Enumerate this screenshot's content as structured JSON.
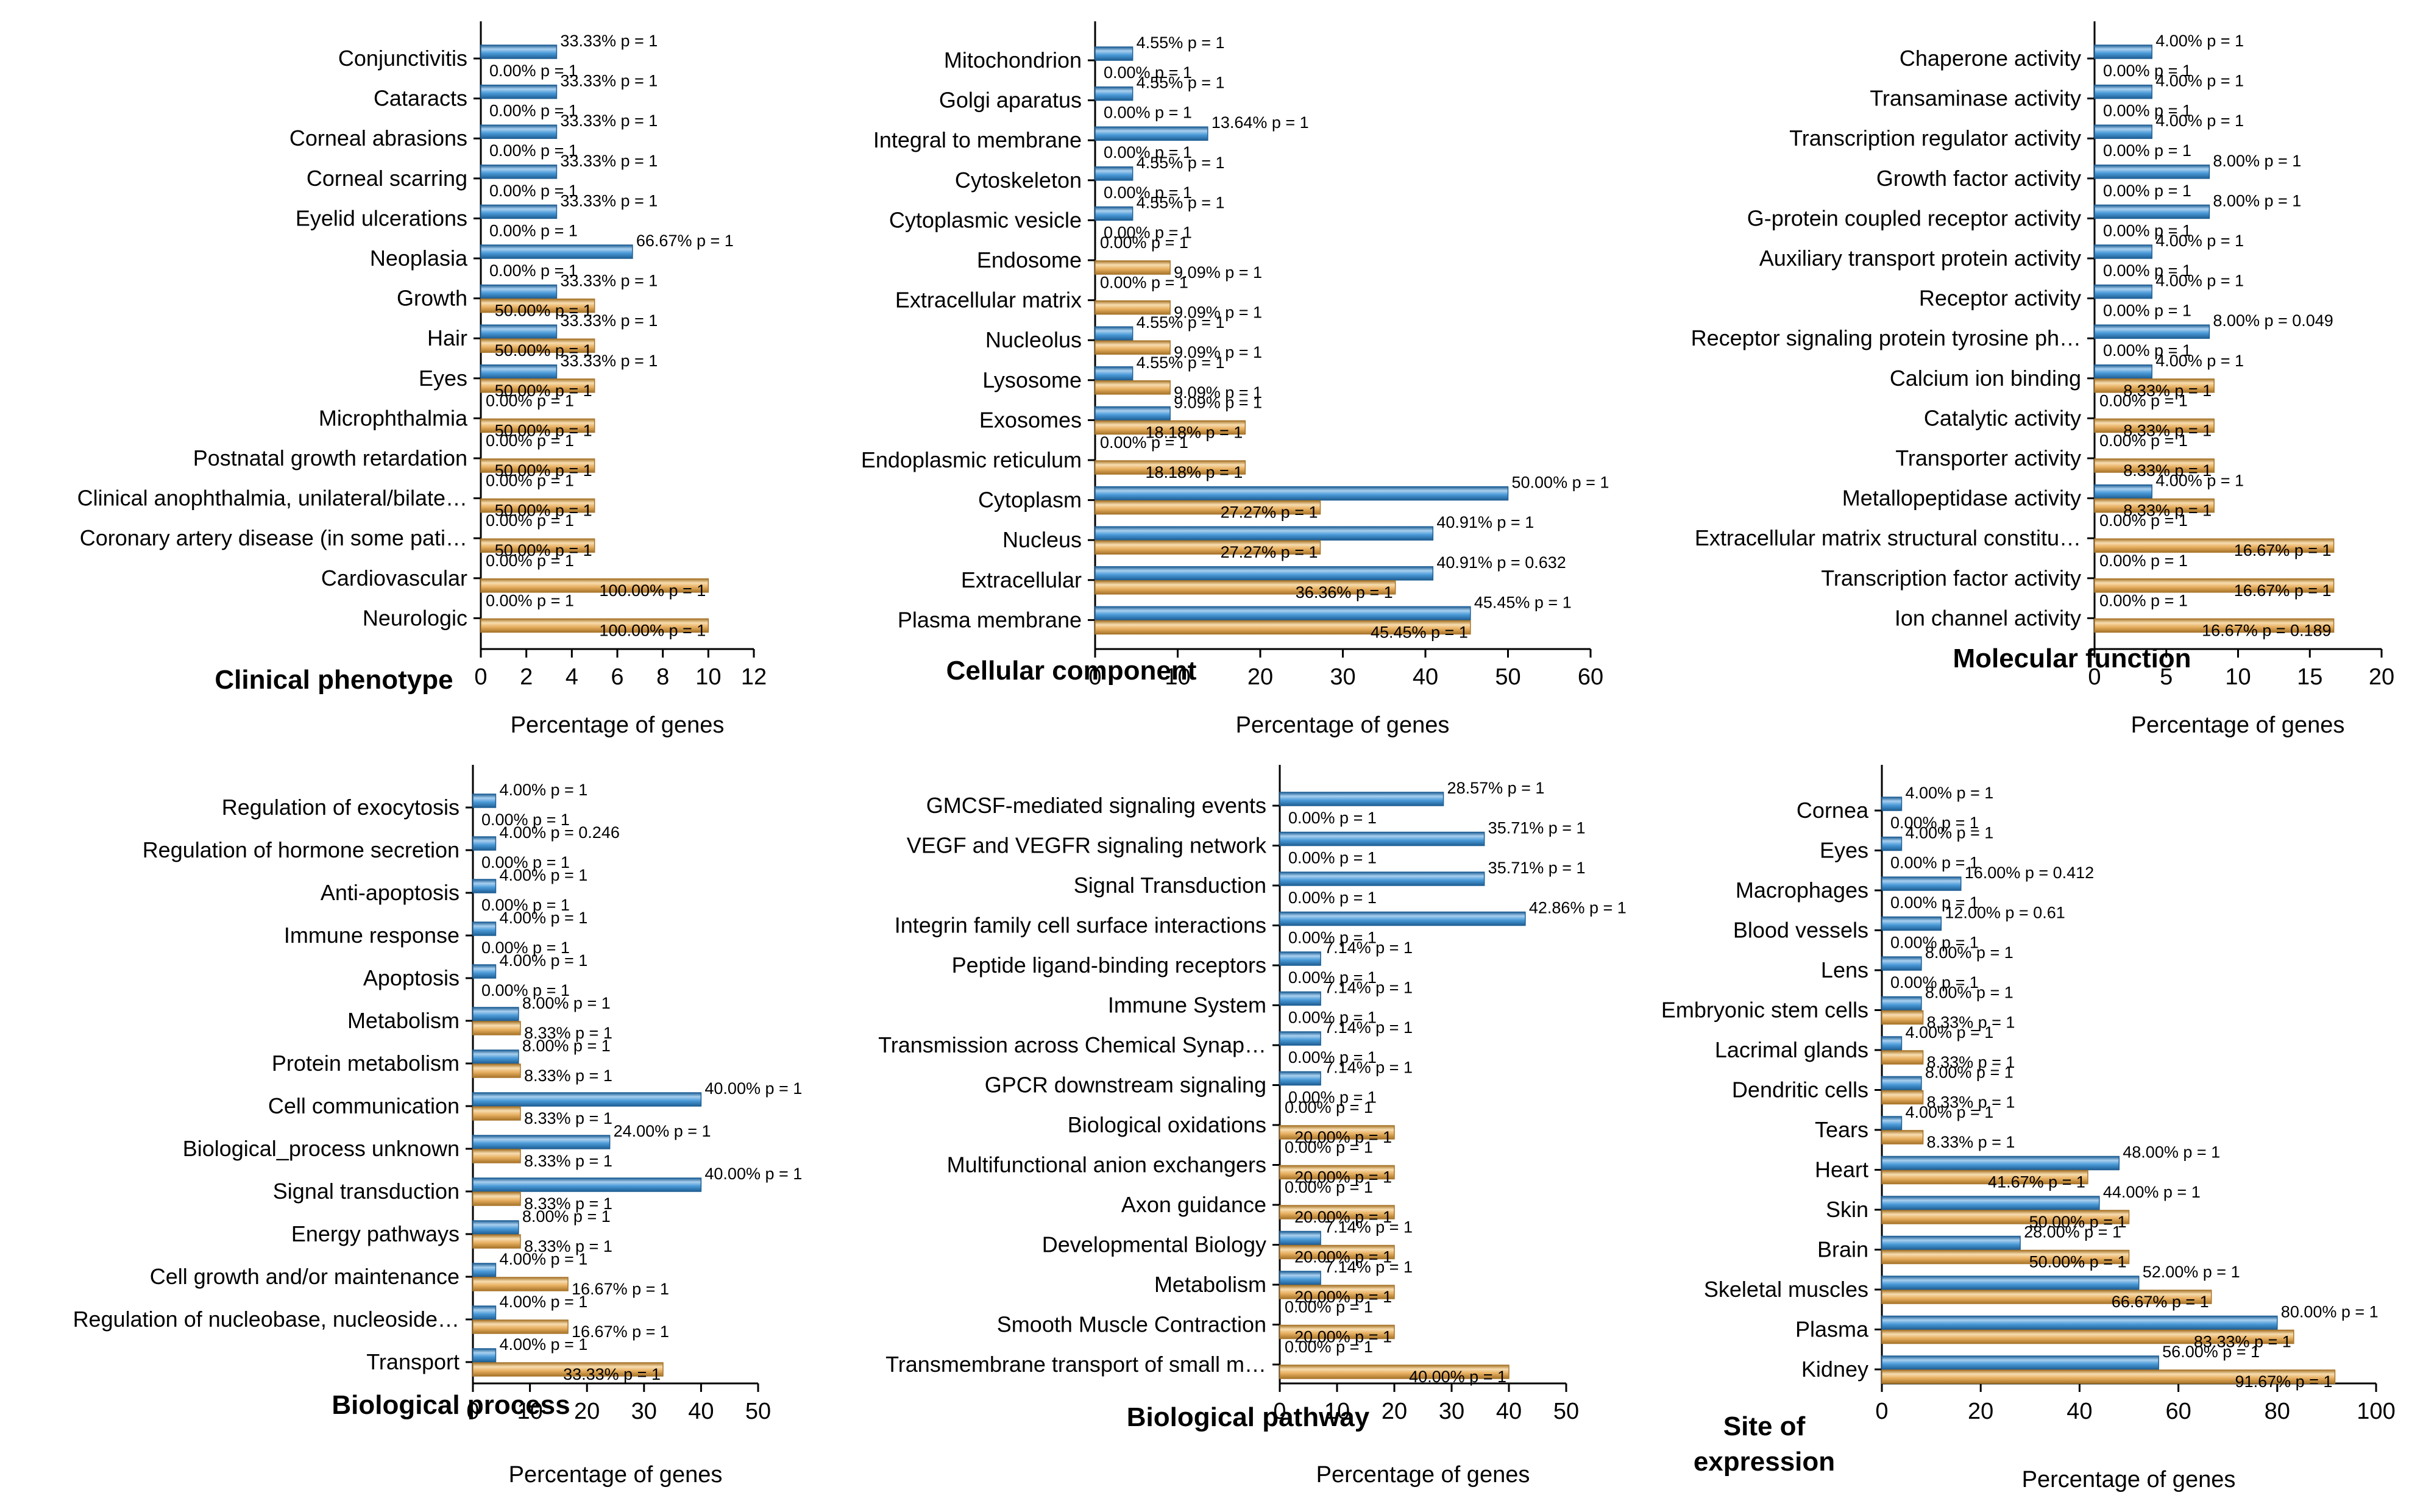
{
  "figure_title": "",
  "colors": {
    "blue": "#4a9ad8",
    "blue_light": "#a9d0ef",
    "blue_dark": "#1f5f95",
    "orange": "#e8b062",
    "orange_light": "#f7ddb0",
    "orange_dark": "#a8752a",
    "axis": "#000000",
    "text": "#000000"
  },
  "chart_data": [
    {
      "type": "bar",
      "orientation": "horizontal",
      "title": "Clinical phenotype",
      "xlabel": "Percentage of genes",
      "xlim": [
        0,
        12
      ],
      "xticks": [
        0,
        2,
        4,
        6,
        8,
        10,
        12
      ],
      "categories": [
        "Conjunctivitis",
        "Cataracts",
        "Corneal abrasions",
        "Corneal scarring",
        "Eyelid ulcerations",
        "Neoplasia",
        "Growth",
        "Hair",
        "Eyes",
        "Microphthalmia",
        "Postnatal growth retardation",
        "Clinical anophthalmia, unilateral/bilate…",
        "Coronary artery disease (in some pati…",
        "Cardiovascular",
        "Neurologic"
      ],
      "series": [
        {
          "name": "blue",
          "values": [
            3.333,
            3.333,
            3.333,
            3.333,
            3.333,
            6.667,
            3.333,
            3.333,
            3.333,
            0,
            0,
            0,
            0,
            0,
            0
          ],
          "labels": [
            "33.33%  p = 1",
            "33.33%  p = 1",
            "33.33%  p = 1",
            "33.33%  p = 1",
            "33.33%  p = 1",
            "66.67%  p = 1",
            "33.33%  p = 1",
            "33.33%  p = 1",
            "33.33%  p = 1",
            "0.00%  p = 1",
            "0.00%  p = 1",
            "0.00%  p = 1",
            "0.00%  p = 1",
            "0.00%  p = 1",
            "0.00%  p = 1"
          ]
        },
        {
          "name": "orange",
          "values": [
            0,
            0,
            0,
            0,
            0,
            0,
            5,
            5,
            5,
            5,
            5,
            5,
            5,
            10,
            10
          ],
          "labels": [
            "0.00%  p = 1",
            "0.00%  p = 1",
            "0.00%  p = 1",
            "0.00%  p = 1",
            "0.00%  p = 1",
            "0.00%  p = 1",
            "50.00%  p = 1",
            "50.00%  p = 1",
            "50.00%  p = 1",
            "50.00%  p = 1",
            "50.00%  p = 1",
            "50.00%  p = 1",
            "50.00%  p = 1",
            "100.00%  p = 1",
            "100.00%  p = 1"
          ]
        }
      ]
    },
    {
      "type": "bar",
      "orientation": "horizontal",
      "title": "Cellular component",
      "xlabel": "Percentage of genes",
      "xlim": [
        0,
        60
      ],
      "xticks": [
        0,
        10,
        20,
        30,
        40,
        50,
        60
      ],
      "categories": [
        "Mitochondrion",
        "Golgi aparatus",
        "Integral to membrane",
        "Cytoskeleton",
        "Cytoplasmic vesicle",
        "Endosome",
        "Extracellular matrix",
        "Nucleolus",
        "Lysosome",
        "Exosomes",
        "Endoplasmic reticulum",
        "Cytoplasm",
        "Nucleus",
        "Extracellular",
        "Plasma membrane"
      ],
      "series": [
        {
          "name": "blue",
          "values": [
            4.55,
            4.55,
            13.64,
            4.55,
            4.55,
            0,
            0,
            4.55,
            4.55,
            9.09,
            0,
            50,
            40.91,
            40.91,
            45.45
          ],
          "labels": [
            "4.55%  p = 1",
            "4.55%  p = 1",
            "13.64%  p = 1",
            "4.55%  p = 1",
            "4.55%  p = 1",
            "0.00%  p = 1",
            "0.00%  p = 1",
            "4.55%  p = 1",
            "4.55%  p = 1",
            "9.09%  p = 1",
            "0.00%  p = 1",
            "50.00%  p = 1",
            "40.91%  p = 1",
            "40.91%  p = 0.632",
            "45.45%  p = 1"
          ]
        },
        {
          "name": "orange",
          "values": [
            0,
            0,
            0,
            0,
            0,
            9.09,
            9.09,
            9.09,
            9.09,
            18.18,
            18.18,
            27.27,
            27.27,
            36.36,
            45.45
          ],
          "labels": [
            "0.00%  p = 1",
            "0.00%  p = 1",
            "0.00%  p = 1",
            "0.00%  p = 1",
            "0.00%  p = 1",
            "9.09%  p = 1",
            "9.09%  p = 1",
            "9.09%  p = 1",
            "9.09%  p = 1",
            "18.18%  p = 1",
            "18.18%  p = 1",
            "27.27%  p = 1",
            "27.27%  p = 1",
            "36.36%  p = 1",
            "45.45%  p = 1"
          ]
        }
      ]
    },
    {
      "type": "bar",
      "orientation": "horizontal",
      "title": "Molecular function",
      "xlabel": "Percentage of genes",
      "xlim": [
        0,
        20
      ],
      "xticks": [
        0,
        5,
        10,
        15,
        20
      ],
      "categories": [
        "Chaperone activity",
        "Transaminase activity",
        "Transcription regulator activity",
        "Growth factor activity",
        "G-protein coupled receptor activity",
        "Auxiliary transport protein activity",
        "Receptor activity",
        "Receptor signaling protein tyrosine ph…",
        "Calcium ion binding",
        "Catalytic activity",
        "Transporter activity",
        "Metallopeptidase activity",
        "Extracellular matrix structural constitu…",
        "Transcription factor activity",
        "Ion channel activity"
      ],
      "series": [
        {
          "name": "blue",
          "values": [
            4,
            4,
            4,
            8,
            8,
            4,
            4,
            8,
            4,
            0,
            0,
            4,
            0,
            0,
            0
          ],
          "labels": [
            "4.00%  p = 1",
            "4.00%  p = 1",
            "4.00%  p = 1",
            "8.00%  p = 1",
            "8.00%  p = 1",
            "4.00%  p = 1",
            "4.00%  p = 1",
            "8.00%  p = 0.049",
            "4.00%  p = 1",
            "0.00%  p = 1",
            "0.00%  p = 1",
            "4.00%  p = 1",
            "0.00%  p = 1",
            "0.00%  p = 1",
            "0.00%  p = 1"
          ]
        },
        {
          "name": "orange",
          "values": [
            0,
            0,
            0,
            0,
            0,
            0,
            0,
            0,
            8.33,
            8.33,
            8.33,
            8.33,
            16.67,
            16.67,
            16.67
          ],
          "labels": [
            "0.00%  p = 1",
            "0.00%  p = 1",
            "0.00%  p = 1",
            "0.00%  p = 1",
            "0.00%  p = 1",
            "0.00%  p = 1",
            "0.00%  p = 1",
            "0.00%  p = 1",
            "8.33%  p = 1",
            "8.33%  p = 1",
            "8.33%  p = 1",
            "8.33%  p = 1",
            "16.67%  p = 1",
            "16.67%  p = 1",
            "16.67%  p = 0.189"
          ]
        }
      ]
    },
    {
      "type": "bar",
      "orientation": "horizontal",
      "title": "Biological process",
      "xlabel": "Percentage of genes",
      "xlim": [
        0,
        50
      ],
      "xticks": [
        0,
        10,
        20,
        30,
        40,
        50
      ],
      "categories": [
        "Regulation of exocytosis",
        "Regulation of hormone secretion",
        "Anti-apoptosis",
        "Immune response",
        "Apoptosis",
        "Metabolism",
        "Protein metabolism",
        "Cell communication",
        "Biological_process unknown",
        "Signal transduction",
        "Energy pathways",
        "Cell growth and/or maintenance",
        "Regulation of nucleobase, nucleoside…",
        "Transport"
      ],
      "series": [
        {
          "name": "blue",
          "values": [
            4,
            4,
            4,
            4,
            4,
            8,
            8,
            40,
            24,
            40,
            8,
            4,
            4,
            4
          ],
          "labels": [
            "4.00%  p = 1",
            "4.00%  p = 0.246",
            "4.00%  p = 1",
            "4.00%  p = 1",
            "4.00%  p = 1",
            "8.00%  p = 1",
            "8.00%  p = 1",
            "40.00%  p = 1",
            "24.00%  p = 1",
            "40.00%  p = 1",
            "8.00%  p = 1",
            "4.00%  p = 1",
            "4.00%  p = 1",
            "4.00%  p = 1"
          ]
        },
        {
          "name": "orange",
          "values": [
            0,
            0,
            0,
            0,
            0,
            8.33,
            8.33,
            8.33,
            8.33,
            8.33,
            8.33,
            16.67,
            16.67,
            33.33
          ],
          "labels": [
            "0.00%  p = 1",
            "0.00%  p = 1",
            "0.00%  p = 1",
            "0.00%  p = 1",
            "0.00%  p = 1",
            "8.33%  p = 1",
            "8.33%  p = 1",
            "8.33%  p = 1",
            "8.33%  p = 1",
            "8.33%  p = 1",
            "8.33%  p = 1",
            "16.67%  p = 1",
            "16.67%  p = 1",
            "33.33%  p = 1"
          ]
        }
      ]
    },
    {
      "type": "bar",
      "orientation": "horizontal",
      "title": "Biological pathway",
      "xlabel": "Percentage of genes",
      "xlim": [
        0,
        50
      ],
      "xticks": [
        0,
        10,
        20,
        30,
        40,
        50
      ],
      "categories": [
        "GMCSF-mediated signaling events",
        "VEGF and VEGFR signaling network",
        "Signal Transduction",
        "Integrin family cell surface interactions",
        "Peptide ligand-binding receptors",
        "Immune System",
        "Transmission across Chemical Synap…",
        "GPCR downstream signaling",
        "Biological oxidations",
        "Multifunctional anion exchangers",
        "Axon guidance",
        "Developmental Biology",
        "Metabolism",
        "Smooth Muscle Contraction",
        "Transmembrane transport of small m…"
      ],
      "series": [
        {
          "name": "blue",
          "values": [
            28.57,
            35.71,
            35.71,
            42.86,
            7.14,
            7.14,
            7.14,
            7.14,
            0,
            0,
            0,
            7.14,
            7.14,
            0,
            0
          ],
          "labels": [
            "28.57%  p = 1",
            "35.71%  p = 1",
            "35.71%  p = 1",
            "42.86%  p = 1",
            "7.14%  p = 1",
            "7.14%  p = 1",
            "7.14%  p = 1",
            "7.14%  p = 1",
            "0.00%  p = 1",
            "0.00%  p = 1",
            "0.00%  p = 1",
            "7.14%  p = 1",
            "7.14%  p = 1",
            "0.00%  p = 1",
            "0.00%  p = 1"
          ]
        },
        {
          "name": "orange",
          "values": [
            0,
            0,
            0,
            0,
            0,
            0,
            0,
            0,
            20,
            20,
            20,
            20,
            20,
            20,
            40
          ],
          "labels": [
            "0.00%  p = 1",
            "0.00%  p = 1",
            "0.00%  p = 1",
            "0.00%  p = 1",
            "0.00%  p = 1",
            "0.00%  p = 1",
            "0.00%  p = 1",
            "0.00%  p = 1",
            "20.00%  p = 1",
            "20.00%  p = 1",
            "20.00%  p = 1",
            "20.00%  p = 1",
            "20.00%  p = 1",
            "20.00%  p = 1",
            "40.00%  p = 1"
          ]
        }
      ]
    },
    {
      "type": "bar",
      "orientation": "horizontal",
      "title": "Site of expression",
      "xlabel": "Percentage of genes",
      "xlim": [
        0,
        100
      ],
      "xticks": [
        0,
        20,
        40,
        60,
        80,
        100
      ],
      "categories": [
        "Cornea",
        "Eyes",
        "Macrophages",
        "Blood vessels",
        "Lens",
        "Embryonic stem cells",
        "Lacrimal glands",
        "Dendritic cells",
        "Tears",
        "Heart",
        "Skin",
        "Brain",
        "Skeletal muscles",
        "Plasma",
        "Kidney"
      ],
      "series": [
        {
          "name": "blue",
          "values": [
            4,
            4,
            16,
            12,
            8,
            8,
            4,
            8,
            4,
            48,
            44,
            28,
            52,
            80,
            56
          ],
          "labels": [
            "4.00%  p = 1",
            "4.00%  p = 1",
            "16.00%  p = 0.412",
            "12.00%  p = 0.61",
            "8.00%  p = 1",
            "8.00%  p = 1",
            "4.00%  p = 1",
            "8.00%  p = 1",
            "4.00%  p = 1",
            "48.00%  p = 1",
            "44.00%  p = 1",
            "28.00%  p = 1",
            "52.00%  p = 1",
            "80.00%  p = 1",
            "56.00%  p = 1"
          ]
        },
        {
          "name": "orange",
          "values": [
            0,
            0,
            0,
            0,
            0,
            8.33,
            8.33,
            8.33,
            8.33,
            41.67,
            50,
            50,
            66.67,
            83.33,
            91.67
          ],
          "labels": [
            "0.00%  p = 1",
            "0.00%  p = 1",
            "0.00%  p = 1",
            "0.00%  p = 1",
            "0.00%  p = 1",
            "8.33%  p = 1",
            "8.33%  p = 1",
            "8.33%  p = 1",
            "8.33%  p = 1",
            "41.67%  p = 1",
            "50.00%  p = 1",
            "50.00%  p = 1",
            "66.67%  p = 1",
            "83.33%  p = 1",
            "91.67%  p = 1"
          ]
        }
      ]
    }
  ]
}
